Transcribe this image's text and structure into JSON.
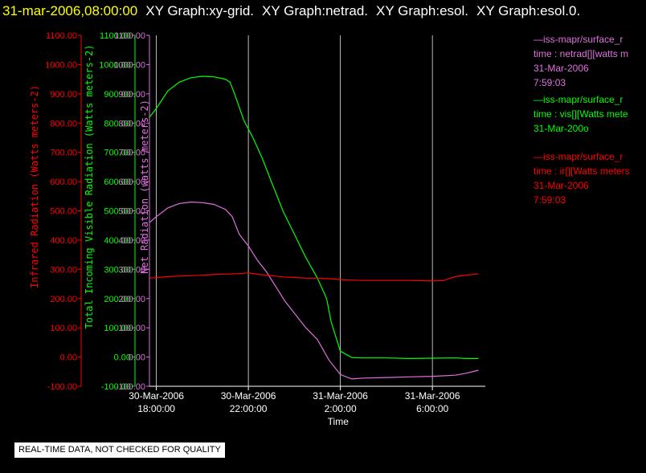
{
  "header": {
    "datetime": "31-mar-2006,08:00:00",
    "titles": [
      "XY Graph:xy-grid.",
      "XY Graph:netrad.",
      "XY Graph:esol.",
      "XY Graph:esol.0."
    ]
  },
  "qc_notice": "REAL-TIME DATA, NOT CHECKED FOR QUALITY",
  "legend": [
    {
      "color": "#e070e0",
      "lines": [
        "—iss-mapr/surface_r",
        "time : netrad[][watts m",
        "31-Mar-2006",
        "7:59:03"
      ]
    },
    {
      "color": "#00ff00",
      "lines": [
        "—iss-mapr/surface_r",
        "time : vis[][Watts mete",
        "31-Mar-200o"
      ]
    },
    {
      "color": "#ff0000",
      "lines": [
        "—iss-mapr/surface_r",
        "time : ir[][Watts meters",
        "31-Mar-2006",
        "7:59:03"
      ]
    }
  ],
  "chart_data": {
    "type": "line",
    "xlabel": "Time",
    "x_ticks": [
      {
        "l1": "30-Mar-2006",
        "l2": "18:00:00",
        "h": 18
      },
      {
        "l1": "30-Mar-2006",
        "l2": "22:00:00",
        "h": 22
      },
      {
        "l1": "31-Mar-2006",
        "l2": "2:00:00",
        "h": 26
      },
      {
        "l1": "31-Mar-2006",
        "l2": "6:00:00",
        "h": 30
      }
    ],
    "xlim_hours_from_30mar_00": [
      17.7,
      32.3
    ],
    "grid_x": true,
    "ylim": [
      -100,
      1100
    ],
    "y_ticks": [
      "1100.00",
      "1000.00",
      "900.00",
      "800.00",
      "700.00",
      "600.00",
      "500.00",
      "400.00",
      "300.00",
      "200.00",
      "100.00",
      "0.00",
      "-100.00"
    ],
    "axes": [
      {
        "id": "ir",
        "label": "Infrared Radiation (Watts meters-2)",
        "color": "#ff0000"
      },
      {
        "id": "vis",
        "label": "Total Incoming Visible Radiation (Watts meters-2)",
        "color": "#00ff00"
      },
      {
        "id": "net",
        "label": "Net Radiation (watts meters-2)",
        "color": "#e070e0"
      }
    ],
    "series": [
      {
        "id": "vis",
        "color": "#00ff00",
        "x": [
          17.7,
          18.0,
          18.5,
          19.0,
          19.5,
          20.0,
          20.5,
          21.0,
          21.2,
          21.4,
          21.8,
          22.2,
          22.6,
          23.0,
          23.5,
          24.0,
          24.5,
          25.0,
          25.4,
          25.6,
          26.0,
          26.5,
          27.0,
          28.0,
          29.0,
          30.0,
          31.0,
          31.5,
          32.0
        ],
        "y": [
          820,
          850,
          910,
          940,
          955,
          960,
          958,
          950,
          940,
          900,
          810,
          750,
          680,
          600,
          500,
          420,
          340,
          270,
          200,
          120,
          20,
          -2,
          -3,
          -3,
          -5,
          -4,
          -3,
          -5,
          -5
        ]
      },
      {
        "id": "net",
        "color": "#e070e0",
        "x": [
          17.7,
          18.0,
          18.5,
          19.0,
          19.5,
          20.0,
          20.5,
          21.0,
          21.3,
          21.6,
          22.0,
          22.4,
          22.8,
          23.2,
          23.6,
          24.0,
          24.5,
          25.0,
          25.5,
          26.0,
          26.5,
          27.0,
          28.0,
          29.0,
          30.0,
          31.0,
          31.5,
          32.0
        ],
        "y": [
          460,
          480,
          510,
          525,
          530,
          528,
          522,
          505,
          480,
          420,
          380,
          330,
          290,
          240,
          190,
          150,
          100,
          60,
          -10,
          -60,
          -75,
          -72,
          -70,
          -68,
          -66,
          -62,
          -55,
          -45
        ]
      },
      {
        "id": "ir",
        "color": "#ff0000",
        "x": [
          17.7,
          18.5,
          19.5,
          20.5,
          21.5,
          22.0,
          22.5,
          23.0,
          23.5,
          24.0,
          24.5,
          25.0,
          25.5,
          26.0,
          26.5,
          27.0,
          28.0,
          29.0,
          30.0,
          30.5,
          31.0,
          31.5,
          32.0
        ],
        "y": [
          270,
          275,
          278,
          282,
          285,
          288,
          282,
          278,
          274,
          272,
          270,
          270,
          268,
          265,
          263,
          262,
          262,
          262,
          260,
          262,
          275,
          280,
          285
        ]
      }
    ]
  }
}
